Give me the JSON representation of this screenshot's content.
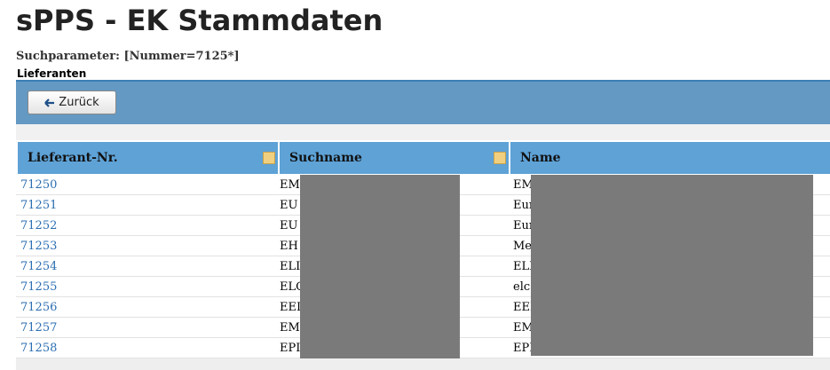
{
  "header": {
    "title": "sPPS - EK Stammdaten",
    "search": "Suchparameter: [Nummer=7125*]"
  },
  "section": {
    "title": "Lieferanten",
    "back_button": "Zurück"
  },
  "table": {
    "columns": [
      "Lieferant-Nr.",
      "Suchname",
      "Name"
    ],
    "rows": [
      [
        "71250",
        "EM",
        "EM"
      ],
      [
        "71251",
        "EU",
        "Eur"
      ],
      [
        "71252",
        "EU",
        "Eur"
      ],
      [
        "71253",
        "EH",
        "Me"
      ],
      [
        "71254",
        "ELI",
        "ELI"
      ],
      [
        "71255",
        "ELC",
        "elc"
      ],
      [
        "71256",
        "EEI",
        "EEI"
      ],
      [
        "71257",
        "EM",
        "EM"
      ],
      [
        "71258",
        "EPI",
        "EPI"
      ]
    ]
  }
}
